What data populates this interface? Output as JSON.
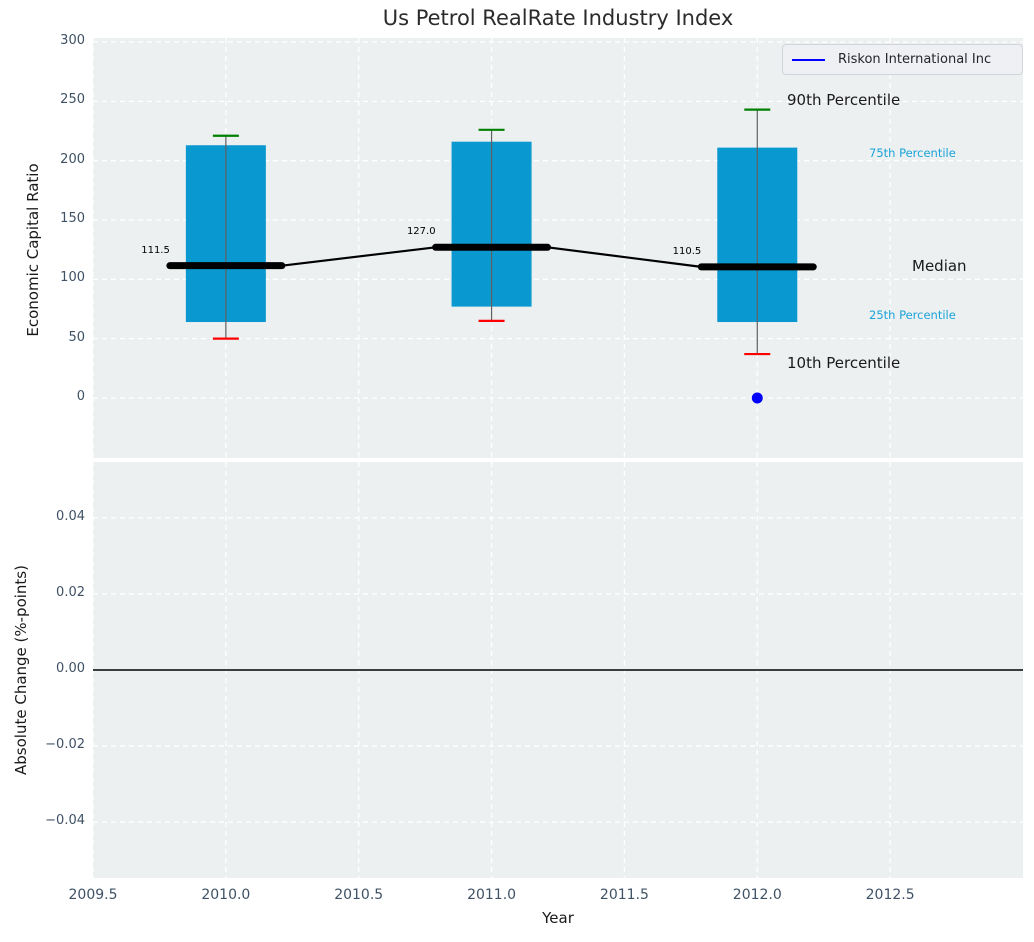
{
  "figure": {
    "title": "Us Petrol RealRate Industry Index",
    "legend": {
      "label": "Riskon International Inc",
      "line_color": "#0000ff"
    }
  },
  "chart_data": {
    "type": "boxplot",
    "title": "Us Petrol RealRate Industry Index",
    "xlabel": "Year",
    "xlim": [
      2009.5,
      2013.0
    ],
    "grid": "white dashed on light panel",
    "legend_position": "upper right",
    "x_ticks": [
      {
        "value": 2009.5,
        "label": "2009.5"
      },
      {
        "value": 2010.0,
        "label": "2010.0"
      },
      {
        "value": 2010.5,
        "label": "2010.5"
      },
      {
        "value": 2011.0,
        "label": "2011.0"
      },
      {
        "value": 2011.5,
        "label": "2011.5"
      },
      {
        "value": 2012.0,
        "label": "2012.0"
      },
      {
        "value": 2012.5,
        "label": "2012.5"
      }
    ],
    "top_panel": {
      "ylabel": "Economic Capital Ratio",
      "ylim": [
        -50.6,
        303.4
      ],
      "y_ticks": [
        {
          "value": 0,
          "label": "0"
        },
        {
          "value": 50,
          "label": "50"
        },
        {
          "value": 100,
          "label": "100"
        },
        {
          "value": 150,
          "label": "150"
        },
        {
          "value": 200,
          "label": "200"
        },
        {
          "value": 250,
          "label": "250"
        },
        {
          "value": 300,
          "label": "300"
        }
      ],
      "boxes": [
        {
          "year": 2010,
          "p10": 50,
          "p25": 64,
          "median": 111.5,
          "p75": 213,
          "p90": 221,
          "label": "111.5"
        },
        {
          "year": 2011,
          "p10": 65,
          "p25": 77,
          "median": 127.0,
          "p75": 216,
          "p90": 226,
          "label": "127.0"
        },
        {
          "year": 2012,
          "p10": 37,
          "p25": 64,
          "median": 110.5,
          "p75": 211,
          "p90": 243,
          "label": "110.5"
        }
      ],
      "percentile_labels": {
        "p90": "90th Percentile",
        "p75": "75th Percentile",
        "median": "Median",
        "p25": "25th Percentile",
        "p10": "10th Percentile"
      },
      "company_point": {
        "series": "Riskon International Inc",
        "x": 2012,
        "y": 0
      }
    },
    "bottom_panel": {
      "ylabel": "Absolute Change (%-points)",
      "ylim": [
        -0.0547,
        0.0547
      ],
      "y_ticks": [
        {
          "value": 0.04,
          "label": "0.04"
        },
        {
          "value": 0.02,
          "label": "0.02"
        },
        {
          "value": 0.0,
          "label": "0.00"
        },
        {
          "value": -0.02,
          "label": "−0.02"
        },
        {
          "value": -0.04,
          "label": "−0.04"
        }
      ],
      "zero_line": 0
    },
    "colors": {
      "box": "#0999d0",
      "whisker": "#606060",
      "p90_cap": "#008000",
      "p10_cap": "#ff0000",
      "median_line": "#000000",
      "company": "#0000ff",
      "plot_bg": "#ecf0f1",
      "grid": "#ffffff",
      "tick_text": "#3f5265",
      "percentile_text": "#1aa3d8"
    }
  }
}
